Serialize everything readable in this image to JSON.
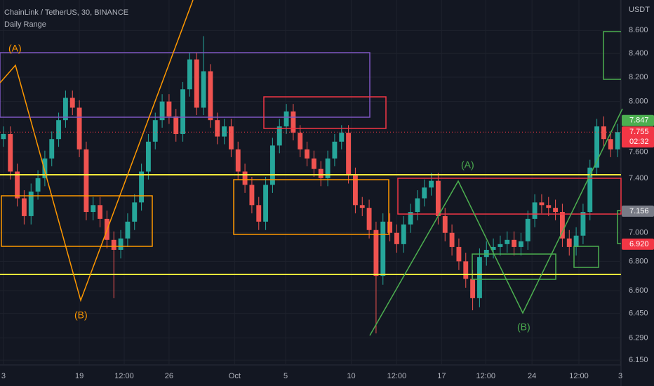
{
  "chart_data": {
    "type": "candlestick",
    "title": "ChainLink / TetherUS, 30, BINANCE",
    "subtitle": "Daily Range",
    "y_unit": "USDT",
    "log_scale": true,
    "up_color": "#26a69a",
    "down_color": "#ef5350",
    "xlim": [
      -0.5,
      89.5
    ],
    "ylim": [
      6.12,
      8.87
    ],
    "xticks": [
      {
        "value": 0,
        "label": "3"
      },
      {
        "value": 11,
        "label": "19"
      },
      {
        "value": 17.5,
        "label": "12:00"
      },
      {
        "value": 24,
        "label": "26"
      },
      {
        "value": 33.5,
        "label": "Oct"
      },
      {
        "value": 40.9,
        "label": "5"
      },
      {
        "value": 50.4,
        "label": "10"
      },
      {
        "value": 57,
        "label": "12:00"
      },
      {
        "value": 63.5,
        "label": "17"
      },
      {
        "value": 69.9,
        "label": "12:00"
      },
      {
        "value": 76.6,
        "label": "24"
      },
      {
        "value": 83.4,
        "label": "12:00"
      },
      {
        "value": 89.4,
        "label": "3"
      }
    ],
    "yticks": [
      {
        "value": 8.6,
        "label": "8.600"
      },
      {
        "value": 8.4,
        "label": "8.400"
      },
      {
        "value": 8.2,
        "label": "8.200"
      },
      {
        "value": 8.0,
        "label": "8.000"
      },
      {
        "value": 7.6,
        "label": "7.600"
      },
      {
        "value": 7.4,
        "label": "7.400"
      },
      {
        "value": 7.0,
        "label": "7.000"
      },
      {
        "value": 6.8,
        "label": "6.800"
      },
      {
        "value": 6.6,
        "label": "6.600"
      },
      {
        "value": 6.45,
        "label": "6.450"
      },
      {
        "value": 6.29,
        "label": "6.290"
      },
      {
        "value": 6.15,
        "label": "6.150"
      }
    ],
    "open": [
      7.7,
      7.74,
      7.45,
      7.25,
      7.12,
      7.3,
      7.4,
      7.55,
      7.7,
      7.85,
      8.03,
      7.95,
      7.62,
      7.15,
      7.2,
      7.1,
      6.95,
      6.88,
      6.96,
      7.08,
      7.22,
      7.45,
      7.68,
      7.85,
      8.0,
      7.88,
      7.74,
      8.1,
      8.35,
      7.95,
      8.25,
      7.85,
      7.72,
      7.8,
      7.62,
      7.45,
      7.35,
      7.2,
      7.08,
      7.35,
      7.65,
      7.8,
      7.92,
      7.75,
      7.62,
      7.55,
      7.47,
      7.4,
      7.55,
      7.68,
      7.75,
      7.42,
      7.2,
      7.18,
      7.02,
      6.7,
      7.08,
      7.0,
      6.92,
      7.06,
      7.15,
      7.25,
      7.33,
      7.38,
      7.12,
      7.0,
      6.9,
      6.8,
      6.68,
      6.55,
      6.83,
      6.88,
      6.9,
      6.92,
      6.95,
      6.9,
      6.94,
      7.1,
      7.22,
      7.2,
      7.18,
      7.15,
      6.96,
      6.9,
      6.98,
      7.15,
      7.48,
      7.8,
      7.7,
      7.62
    ],
    "high": [
      7.8,
      7.8,
      7.51,
      7.31,
      7.36,
      7.46,
      7.61,
      7.76,
      7.91,
      8.09,
      8.09,
      8.01,
      7.68,
      7.26,
      7.26,
      7.16,
      7.01,
      7.02,
      7.14,
      7.28,
      7.51,
      7.74,
      7.91,
      8.06,
      8.06,
      7.94,
      8.16,
      8.41,
      8.41,
      8.55,
      8.31,
      7.91,
      7.86,
      7.86,
      7.68,
      7.51,
      7.41,
      7.26,
      7.41,
      7.71,
      7.86,
      7.98,
      7.98,
      7.81,
      7.68,
      7.61,
      7.53,
      7.61,
      7.74,
      7.81,
      7.81,
      7.48,
      7.26,
      7.24,
      7.08,
      7.14,
      7.14,
      7.06,
      7.12,
      7.21,
      7.31,
      7.39,
      7.44,
      7.44,
      7.18,
      7.06,
      6.96,
      6.86,
      6.74,
      6.89,
      6.94,
      6.96,
      6.98,
      7.01,
      7.01,
      7.0,
      7.16,
      7.28,
      7.28,
      7.26,
      7.24,
      7.21,
      7.02,
      7.04,
      7.21,
      7.54,
      7.86,
      7.88,
      7.76,
      7.82
    ],
    "low": [
      7.64,
      7.39,
      7.19,
      7.06,
      7.06,
      7.24,
      7.34,
      7.49,
      7.64,
      7.79,
      7.89,
      7.56,
      7.09,
      7.09,
      7.04,
      6.89,
      6.55,
      6.82,
      6.9,
      7.02,
      7.16,
      7.39,
      7.62,
      7.79,
      7.82,
      7.68,
      7.68,
      8.04,
      7.89,
      7.89,
      7.79,
      7.66,
      7.66,
      7.56,
      7.39,
      7.29,
      7.14,
      7.02,
      7.02,
      7.29,
      7.59,
      7.74,
      7.69,
      7.56,
      7.49,
      7.41,
      7.34,
      7.34,
      7.49,
      7.62,
      7.36,
      7.14,
      7.12,
      6.96,
      6.32,
      6.64,
      6.94,
      6.86,
      6.86,
      7.0,
      7.09,
      7.19,
      7.27,
      7.06,
      6.94,
      6.84,
      6.74,
      6.62,
      6.47,
      6.49,
      6.77,
      6.82,
      6.84,
      6.86,
      6.84,
      6.84,
      6.88,
      7.04,
      7.14,
      7.12,
      7.09,
      6.9,
      6.84,
      6.84,
      6.92,
      7.09,
      7.42,
      7.64,
      7.56,
      7.56
    ],
    "close": [
      7.74,
      7.45,
      7.25,
      7.12,
      7.3,
      7.4,
      7.55,
      7.7,
      7.85,
      8.03,
      7.95,
      7.62,
      7.15,
      7.2,
      7.1,
      6.95,
      6.88,
      6.96,
      7.08,
      7.22,
      7.45,
      7.68,
      7.85,
      8.0,
      7.88,
      7.74,
      8.1,
      8.35,
      7.95,
      8.25,
      7.85,
      7.72,
      7.8,
      7.62,
      7.45,
      7.35,
      7.2,
      7.08,
      7.35,
      7.65,
      7.8,
      7.92,
      7.75,
      7.62,
      7.55,
      7.47,
      7.4,
      7.55,
      7.68,
      7.75,
      7.42,
      7.2,
      7.18,
      7.02,
      6.7,
      7.08,
      7.0,
      6.92,
      7.06,
      7.15,
      7.25,
      7.33,
      7.38,
      7.12,
      7.0,
      6.9,
      6.8,
      6.68,
      6.55,
      6.83,
      6.88,
      6.9,
      6.92,
      6.95,
      6.9,
      6.94,
      7.1,
      7.22,
      7.2,
      7.18,
      7.15,
      6.96,
      6.9,
      6.98,
      7.15,
      7.48,
      7.8,
      7.7,
      7.62,
      7.755
    ],
    "price_labels": [
      {
        "value": 7.847,
        "label": "7.847",
        "color": "#4caf50"
      },
      {
        "value": 7.755,
        "label": "7.755",
        "color": "#f23645"
      },
      {
        "value": 7.156,
        "label": "7.156",
        "color": "#787b86"
      },
      {
        "value": 6.92,
        "label": "6.920",
        "color": "#f23645"
      }
    ],
    "countdown": "02:32",
    "annotations": [
      "(A)",
      "(B)",
      "(A)",
      "(B)"
    ]
  }
}
